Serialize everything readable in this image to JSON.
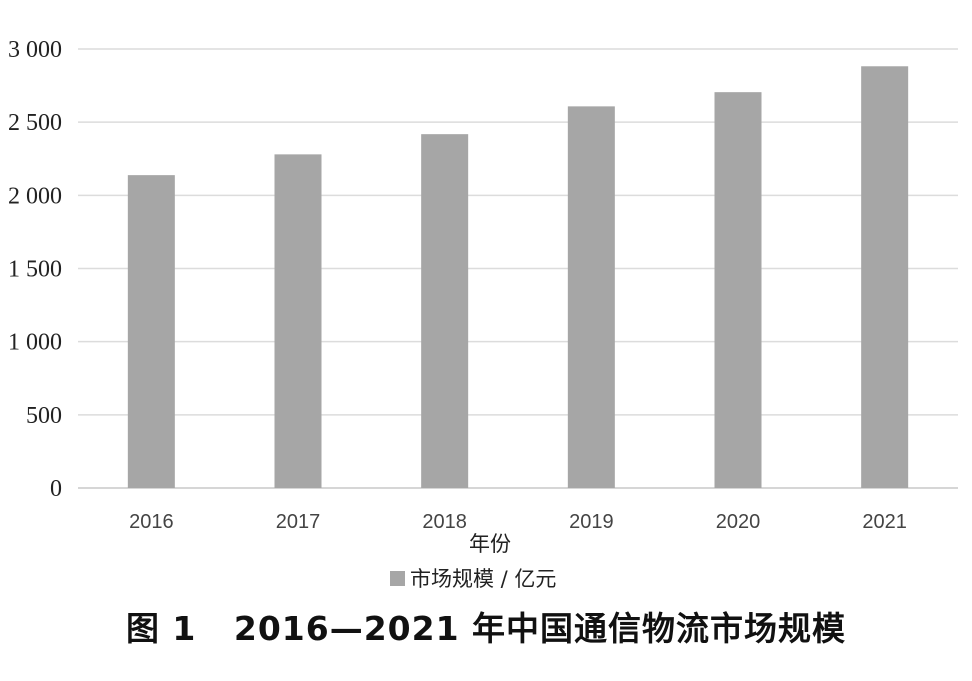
{
  "chart_data": {
    "type": "bar",
    "categories": [
      "2016",
      "2017",
      "2018",
      "2019",
      "2020",
      "2021"
    ],
    "series": [
      {
        "name": "市场规模 / 亿元",
        "values": [
          2138,
          2280,
          2418,
          2608,
          2705,
          2882
        ]
      }
    ],
    "y_ticks": [
      "0",
      "500",
      "1 000",
      "1 500",
      "2 000",
      "2 500",
      "3 000"
    ],
    "ylim": [
      0,
      3000
    ],
    "xlabel": "年份",
    "ylabel": "",
    "grid": true,
    "legend_position": "bottom",
    "bar_color": "#a6a6a6"
  },
  "caption": {
    "figure_label": "图 1",
    "title": "2016—2021 年中国通信物流市场规模"
  }
}
